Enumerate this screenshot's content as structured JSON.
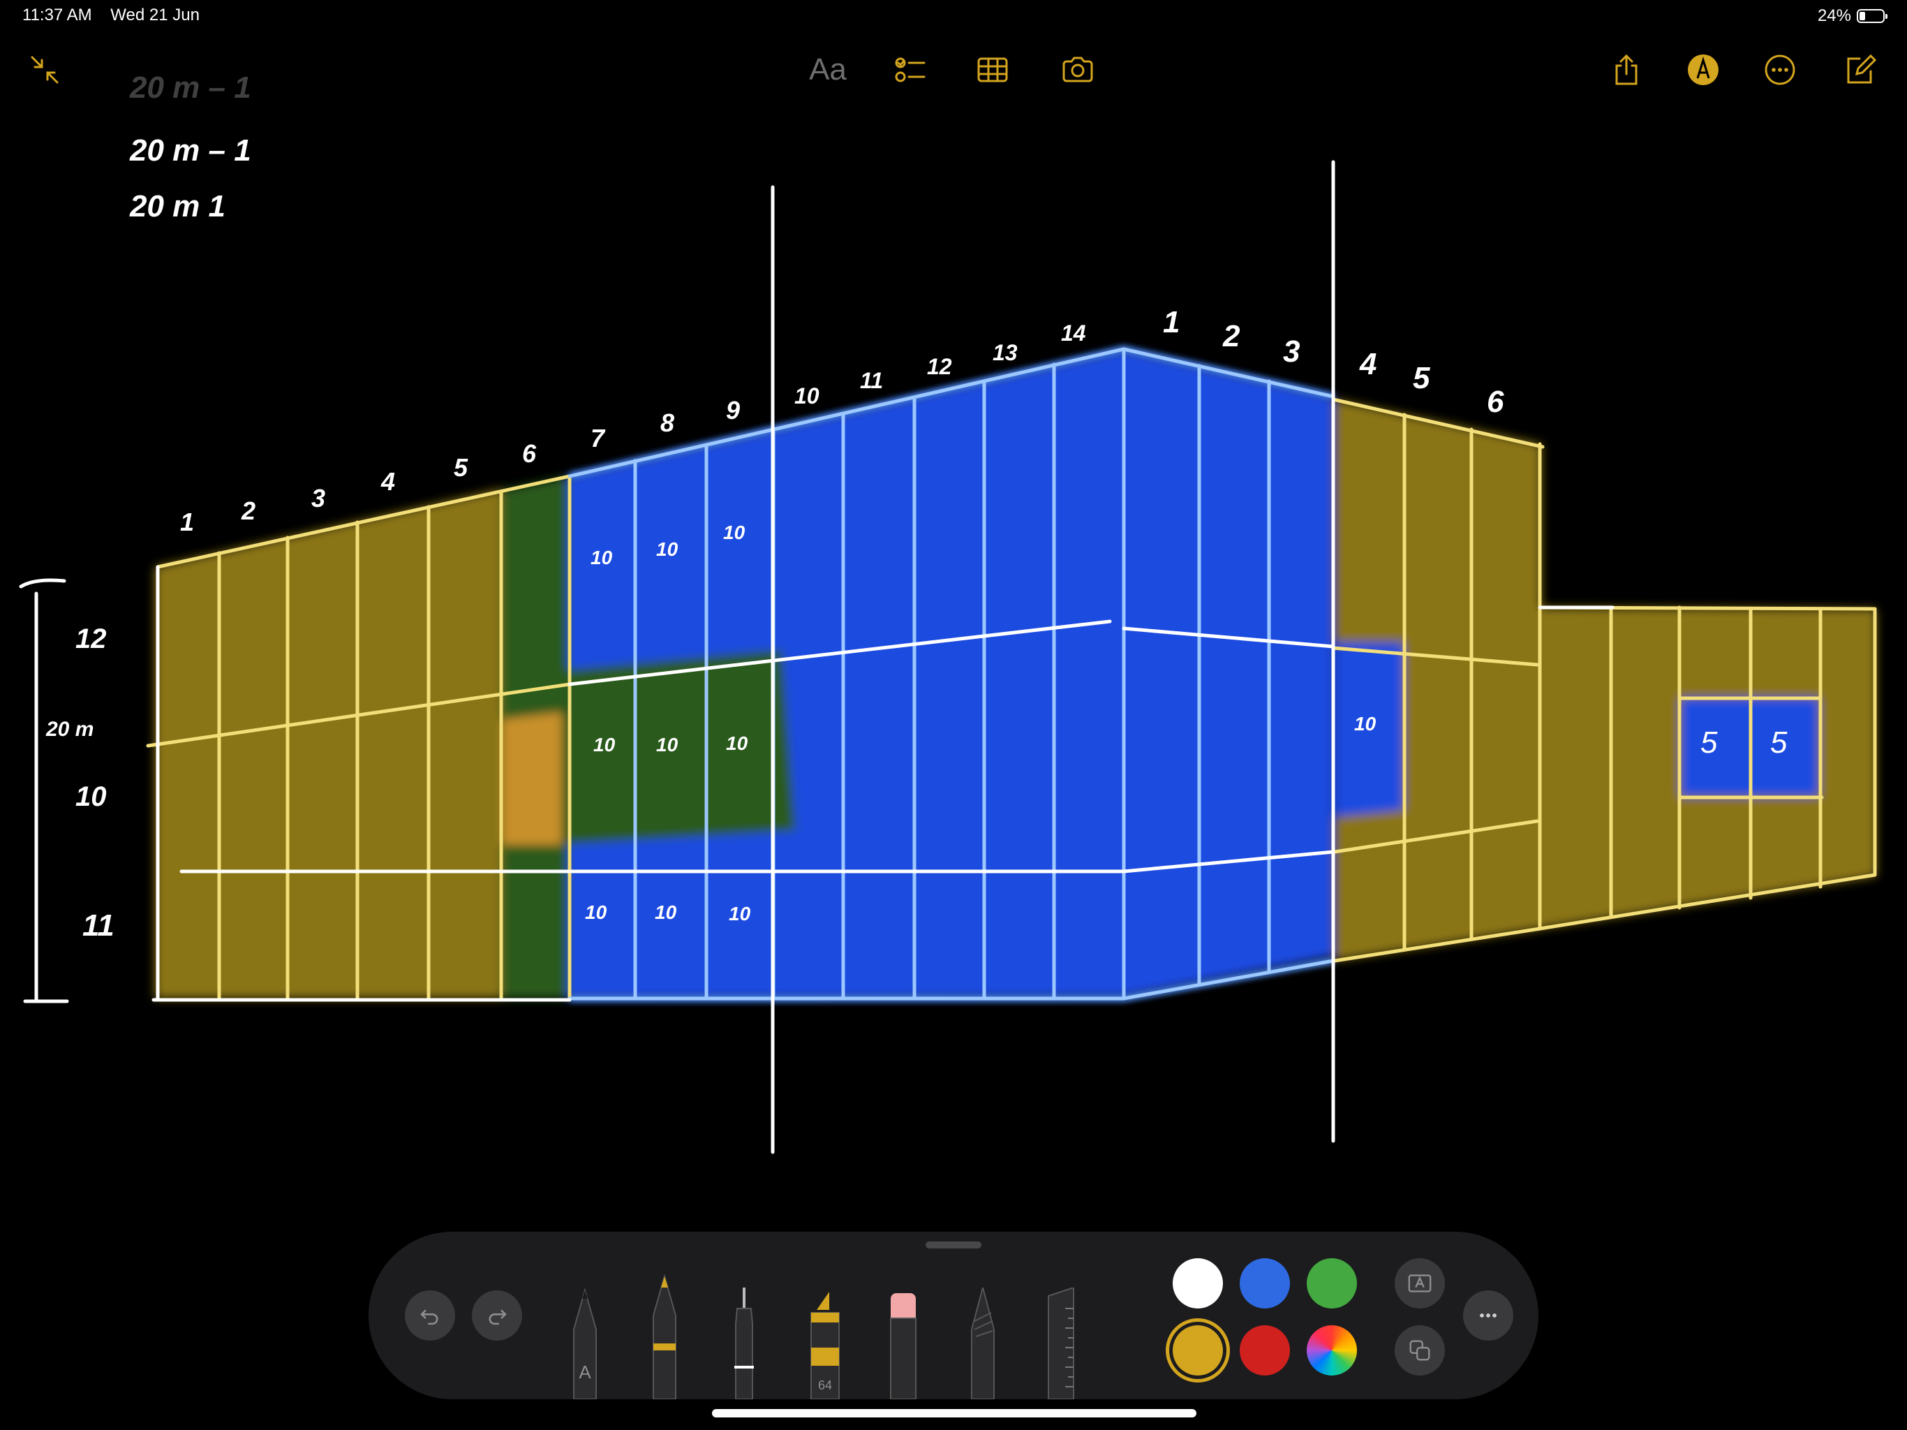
{
  "status_bar": {
    "time": "11:37 AM",
    "date": "Wed 21 Jun",
    "battery_percent_label": "24%",
    "battery_level": 0.24
  },
  "top_bar": {
    "format_label": "Aa",
    "accent_color": "#d4a51e"
  },
  "sketch": {
    "notes": [
      "20 m – 1",
      "20 m – 1",
      "20 m 1"
    ],
    "height_label": "20 m",
    "section_ticks": [
      "12",
      "10",
      "11"
    ],
    "left_segment_numbers": [
      "1",
      "2",
      "3",
      "4",
      "5",
      "6",
      "7",
      "8",
      "9"
    ],
    "middle_segment_numbers": [
      "10",
      "11",
      "12",
      "13",
      "14"
    ],
    "right_segment_numbers": [
      "1",
      "2",
      "3",
      "4",
      "5",
      "6"
    ],
    "cell_labels": [
      "10",
      "10",
      "10",
      "10",
      "10",
      "10",
      "10",
      "10",
      "10",
      "10"
    ],
    "annex_labels": [
      "5",
      "5"
    ],
    "colors": {
      "yellow_fill": "#8a7418",
      "green_fill": "#2a5a1c",
      "blue_fill": "#1f4be0",
      "yellow_line": "#f3df7a",
      "blue_line": "#9cc8ff"
    }
  },
  "toolbar": {
    "marker_width": "64",
    "pen_letter": "A",
    "tools": [
      "pen-tool",
      "monoline-tool",
      "fountain-pen-tool",
      "marker-tool",
      "eraser-tool",
      "crayon-tool",
      "ruler-tool"
    ],
    "colors": [
      "#ffffff",
      "#2f6ae3",
      "#43a940",
      "#d4a51e",
      "#d0211f",
      "multicolor"
    ],
    "selected_color": "#d4a51e"
  }
}
